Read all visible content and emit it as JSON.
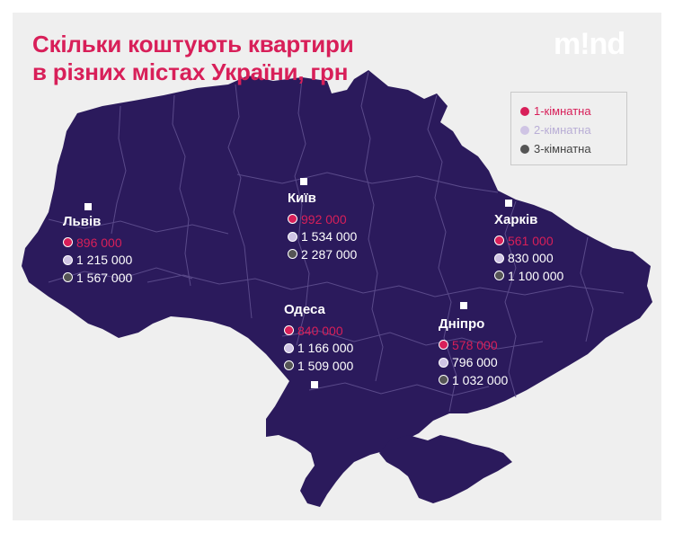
{
  "title": {
    "line1": "Скільки коштують квартири",
    "line2": "в різних містах України, грн"
  },
  "brand": {
    "logo_text": "m!nd"
  },
  "legend": [
    {
      "label": "1-кімнатна",
      "color": "#d81f59"
    },
    {
      "label": "2-кімнатна",
      "color": "#cfc4e4"
    },
    {
      "label": "3-кімнатна",
      "color": "#555555"
    }
  ],
  "colors": {
    "map_fill": "#2b1a5c",
    "region_border": "#5a4a8a",
    "one_room": "#d81f59",
    "two_room": "#cfc4e4",
    "three_room": "#555555",
    "background": "#efefef"
  },
  "cities": {
    "lviv": {
      "name": "Львів",
      "prices": [
        "896 000",
        "1 215 000",
        "1 567 000"
      ]
    },
    "kyiv": {
      "name": "Київ",
      "prices": [
        "992 000",
        "1 534 000",
        "2 287 000"
      ]
    },
    "kharkiv": {
      "name": "Харків",
      "prices": [
        "561 000",
        "830 000",
        "1 100 000"
      ]
    },
    "odesa": {
      "name": "Одеса",
      "prices": [
        "840 000",
        "1 166 000",
        "1 509 000"
      ]
    },
    "dnipro": {
      "name": "Дніпро",
      "prices": [
        "578 000",
        "796 000",
        "1 032 000"
      ]
    }
  }
}
